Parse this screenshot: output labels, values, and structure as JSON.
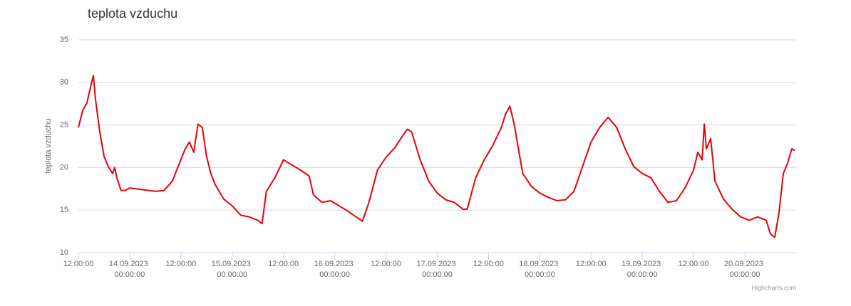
{
  "chart_data": {
    "type": "line",
    "title": "teplota vzduchu",
    "y_label": "teplota vzduchu",
    "credits": "Highcharts.com",
    "color": "#e8000b",
    "grid": true,
    "ylim": [
      10,
      35
    ],
    "yticks": [
      10,
      15,
      20,
      25,
      30,
      35
    ],
    "xlim": [
      "13.09.2023 12:00",
      "20.09.2023 12:00"
    ],
    "xticks": [
      {
        "value": "13.09.2023 12:00",
        "label": "12:00:00"
      },
      {
        "value": "14.09.2023 00:00",
        "label": "14.09.2023 00:00:00"
      },
      {
        "value": "14.09.2023 12:00",
        "label": "12:00:00"
      },
      {
        "value": "15.09.2023 00:00",
        "label": "15.09.2023 00:00:00"
      },
      {
        "value": "15.09.2023 12:00",
        "label": "12:00:00"
      },
      {
        "value": "16.09.2023 00:00",
        "label": "16.09.2023 00:00:00"
      },
      {
        "value": "16.09.2023 12:00",
        "label": "12:00:00"
      },
      {
        "value": "17.09.2023 00:00",
        "label": "17.09.2023 00:00:00"
      },
      {
        "value": "17.09.2023 12:00",
        "label": "12:00:00"
      },
      {
        "value": "18.09.2023 00:00",
        "label": "18.09.2023 00:00:00"
      },
      {
        "value": "18.09.2023 12:00",
        "label": "12:00:00"
      },
      {
        "value": "19.09.2023 00:00",
        "label": "19.09.2023 00:00:00"
      },
      {
        "value": "19.09.2023 12:00",
        "label": "12:00:00"
      },
      {
        "value": "20.09.2023 00:00",
        "label": "20.09.2023 00:00:00"
      }
    ],
    "x": [
      "13.09.2023 12:00",
      "13.09.2023 13:00",
      "13.09.2023 14:00",
      "13.09.2023 15:00",
      "13.09.2023 15:30",
      "13.09.2023 16:00",
      "13.09.2023 17:00",
      "13.09.2023 18:00",
      "13.09.2023 19:00",
      "13.09.2023 20:00",
      "13.09.2023 20:30",
      "13.09.2023 21:00",
      "13.09.2023 22:00",
      "13.09.2023 23:00",
      "14.09.2023 00:00",
      "14.09.2023 06:00",
      "14.09.2023 08:00",
      "14.09.2023 10:00",
      "14.09.2023 11:00",
      "14.09.2023 13:00",
      "14.09.2023 14:00",
      "14.09.2023 15:00",
      "14.09.2023 16:00",
      "14.09.2023 17:00",
      "14.09.2023 18:00",
      "14.09.2023 19:00",
      "14.09.2023 20:00",
      "14.09.2023 22:00",
      "15.09.2023 00:00",
      "15.09.2023 02:00",
      "15.09.2023 04:00",
      "15.09.2023 06:00",
      "15.09.2023 07:00",
      "15.09.2023 08:00",
      "15.09.2023 10:00",
      "15.09.2023 12:00",
      "15.09.2023 14:00",
      "15.09.2023 16:00",
      "15.09.2023 18:00",
      "15.09.2023 19:00",
      "15.09.2023 21:00",
      "15.09.2023 23:00",
      "16.09.2023 01:00",
      "16.09.2023 03:00",
      "16.09.2023 05:00",
      "16.09.2023 06:30",
      "16.09.2023 08:00",
      "16.09.2023 10:00",
      "16.09.2023 12:00",
      "16.09.2023 14:00",
      "16.09.2023 16:00",
      "16.09.2023 17:00",
      "16.09.2023 18:00",
      "16.09.2023 20:00",
      "16.09.2023 22:00",
      "17.09.2023 00:00",
      "17.09.2023 02:00",
      "17.09.2023 04:00",
      "17.09.2023 06:00",
      "17.09.2023 07:00",
      "17.09.2023 09:00",
      "17.09.2023 11:00",
      "17.09.2023 13:00",
      "17.09.2023 15:00",
      "17.09.2023 16:00",
      "17.09.2023 17:00",
      "17.09.2023 18:00",
      "17.09.2023 20:00",
      "17.09.2023 22:00",
      "18.09.2023 00:00",
      "18.09.2023 02:00",
      "18.09.2023 04:00",
      "18.09.2023 06:00",
      "18.09.2023 08:00",
      "18.09.2023 10:00",
      "18.09.2023 12:00",
      "18.09.2023 14:00",
      "18.09.2023 16:00",
      "18.09.2023 18:00",
      "18.09.2023 20:00",
      "18.09.2023 22:00",
      "19.09.2023 00:00",
      "19.09.2023 02:00",
      "19.09.2023 04:00",
      "19.09.2023 06:00",
      "19.09.2023 08:00",
      "19.09.2023 10:00",
      "19.09.2023 12:00",
      "19.09.2023 13:00",
      "19.09.2023 14:00",
      "19.09.2023 14:30",
      "19.09.2023 15:00",
      "19.09.2023 16:00",
      "19.09.2023 17:00",
      "19.09.2023 19:00",
      "19.09.2023 21:00",
      "19.09.2023 23:00",
      "20.09.2023 01:00",
      "20.09.2023 03:00",
      "20.09.2023 05:00",
      "20.09.2023 06:00",
      "20.09.2023 07:00",
      "20.09.2023 08:00",
      "20.09.2023 09:00",
      "20.09.2023 10:00",
      "20.09.2023 11:00",
      "20.09.2023 11:40"
    ],
    "values": [
      24.7,
      26.7,
      27.6,
      29.8,
      30.8,
      28.0,
      24.2,
      21.3,
      20.1,
      19.3,
      20.0,
      18.8,
      17.3,
      17.3,
      17.6,
      17.2,
      17.3,
      18.4,
      19.7,
      22.2,
      23.0,
      21.8,
      25.1,
      24.7,
      21.3,
      19.3,
      18.0,
      16.3,
      15.5,
      14.4,
      14.2,
      13.8,
      13.4,
      17.2,
      18.8,
      20.9,
      20.3,
      19.7,
      19.0,
      16.8,
      15.9,
      16.1,
      15.5,
      14.9,
      14.2,
      13.7,
      15.9,
      19.7,
      21.2,
      22.3,
      23.8,
      24.5,
      24.2,
      20.9,
      18.4,
      17.0,
      16.2,
      15.9,
      15.1,
      15.1,
      18.8,
      20.9,
      22.6,
      24.7,
      26.3,
      27.2,
      25.1,
      19.3,
      17.8,
      17.0,
      16.5,
      16.1,
      16.2,
      17.2,
      20.1,
      23.0,
      24.7,
      25.9,
      24.7,
      22.2,
      20.1,
      19.3,
      18.8,
      17.2,
      15.9,
      16.1,
      17.6,
      19.7,
      21.8,
      20.9,
      25.1,
      22.2,
      23.4,
      18.4,
      16.3,
      15.1,
      14.2,
      13.8,
      14.2,
      13.8,
      12.2,
      11.8,
      14.7,
      19.3,
      20.5,
      22.2,
      22.0
    ]
  }
}
